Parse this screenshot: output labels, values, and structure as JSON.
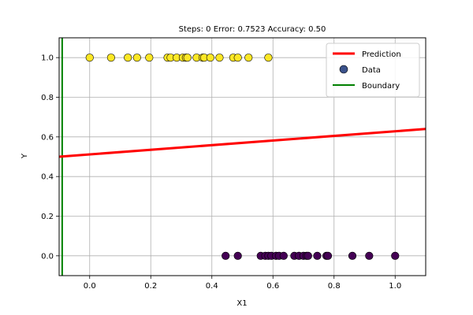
{
  "chart_data": {
    "type": "scatter",
    "title": "Steps: 0 Error: 0.7523 Accuracy: 0.50",
    "xlabel": "X1",
    "ylabel": "Y",
    "xlim": [
      -0.1,
      1.1
    ],
    "ylim": [
      -0.1,
      1.1
    ],
    "xticks": [
      0.0,
      0.2,
      0.4,
      0.6,
      0.8,
      1.0
    ],
    "yticks": [
      0.0,
      0.2,
      0.4,
      0.6,
      0.8,
      1.0
    ],
    "tick_labels_x": [
      "0.0",
      "0.2",
      "0.4",
      "0.6",
      "0.8",
      "1.0"
    ],
    "tick_labels_y": [
      "0.0",
      "0.2",
      "0.4",
      "0.6",
      "0.8",
      "1.0"
    ],
    "grid": true,
    "legend_position": "top-right",
    "legend": [
      "Prediction",
      "Data",
      "Boundary"
    ],
    "colors": {
      "prediction": "#ff0000",
      "boundary": "#008000",
      "class0": "#440154",
      "class1": "#fde725",
      "legend_marker": "#3b528b",
      "grid": "#b0b0b0"
    },
    "series": [
      {
        "name": "Prediction",
        "kind": "line",
        "x": [
          -0.1,
          1.1
        ],
        "y": [
          0.5,
          0.64
        ]
      },
      {
        "name": "Data",
        "kind": "scatter",
        "points_class1": {
          "x": [
            0.0,
            0.07,
            0.125,
            0.155,
            0.195,
            0.255,
            0.265,
            0.285,
            0.305,
            0.315,
            0.32,
            0.35,
            0.37,
            0.375,
            0.395,
            0.425,
            0.47,
            0.485,
            0.52,
            0.585
          ],
          "y": [
            1,
            1,
            1,
            1,
            1,
            1,
            1,
            1,
            1,
            1,
            1,
            1,
            1,
            1,
            1,
            1,
            1,
            1,
            1,
            1
          ]
        },
        "points_class0": {
          "x": [
            0.445,
            0.485,
            0.56,
            0.575,
            0.585,
            0.595,
            0.61,
            0.62,
            0.635,
            0.67,
            0.685,
            0.7,
            0.71,
            0.715,
            0.745,
            0.775,
            0.78,
            0.86,
            0.915,
            1.0
          ],
          "y": [
            0,
            0,
            0,
            0,
            0,
            0,
            0,
            0,
            0,
            0,
            0,
            0,
            0,
            0,
            0,
            0,
            0,
            0,
            0,
            0
          ]
        }
      },
      {
        "name": "Boundary",
        "kind": "vline",
        "x": -0.09
      }
    ]
  }
}
